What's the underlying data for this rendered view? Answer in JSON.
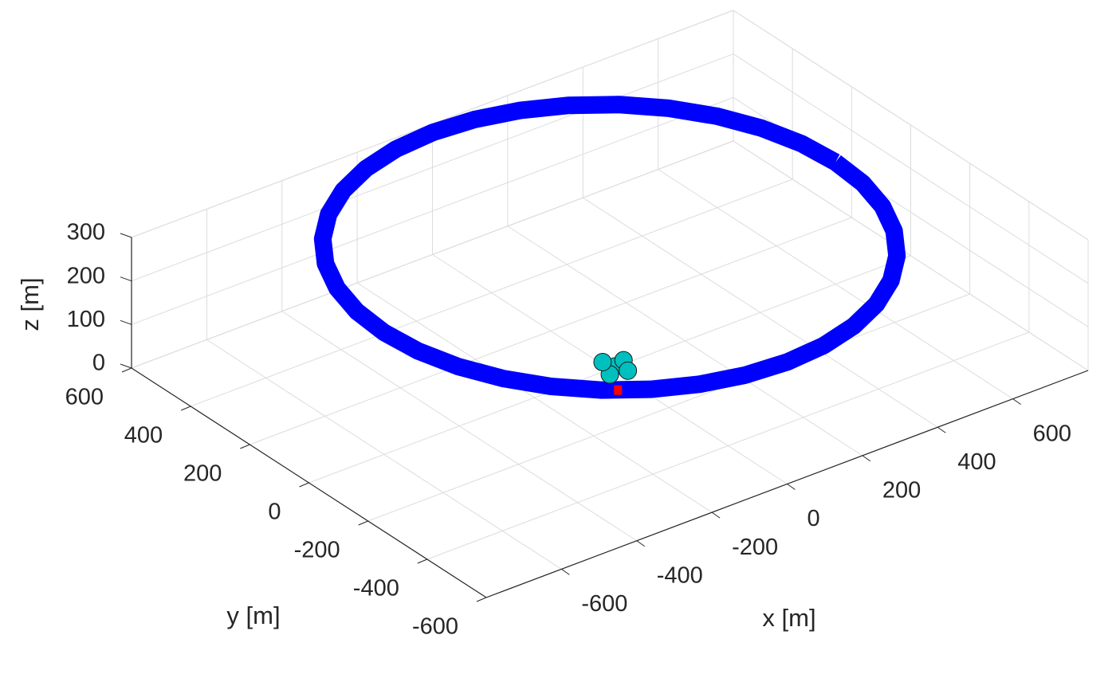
{
  "chart_data": {
    "type": "line",
    "xlabel": "x [m]",
    "ylabel": "y [m]",
    "zlabel": "z [m]",
    "xlim": [
      -800,
      800
    ],
    "ylim": [
      -600,
      600
    ],
    "zlim": [
      0,
      300
    ],
    "xticks": [
      -600,
      -400,
      -200,
      0,
      200,
      400,
      600
    ],
    "yticks": [
      -600,
      -400,
      -200,
      0,
      200,
      400,
      600
    ],
    "zticks": [
      0,
      100,
      200,
      300
    ],
    "grid": true,
    "series": [
      {
        "type": "line",
        "color": "#0000ff",
        "x": [
          600,
          591,
          564,
          520,
          460,
          386,
          300,
          205,
          104,
          0,
          -104,
          -205,
          -300,
          -386,
          -460,
          -520,
          -564,
          -591,
          -600,
          -591,
          -564,
          -520,
          -460,
          -386,
          -300,
          -205,
          -104,
          0,
          104,
          205,
          300,
          386,
          460,
          520,
          564,
          591,
          600
        ],
        "y": [
          0,
          104,
          205,
          300,
          386,
          460,
          520,
          564,
          591,
          600,
          591,
          564,
          520,
          460,
          386,
          300,
          205,
          104,
          0,
          -104,
          -205,
          -300,
          -386,
          -460,
          -520,
          -564,
          -591,
          -600,
          -591,
          -564,
          -520,
          -460,
          -386,
          -300,
          -205,
          -104,
          0
        ],
        "z": [
          280,
          280,
          280,
          280,
          280,
          280,
          280,
          280,
          280,
          280,
          280,
          280,
          280,
          280,
          280,
          280,
          280,
          280,
          280,
          280,
          280,
          280,
          280,
          280,
          280,
          280,
          280,
          280,
          280,
          280,
          280,
          280,
          280,
          280,
          280,
          280,
          280
        ]
      },
      {
        "type": "scatter",
        "marker": "circle",
        "color": "#00bfbf",
        "x": [
          -300,
          -330,
          -270,
          -310,
          -290
        ],
        "y": [
          -400,
          -420,
          -390,
          -370,
          -430
        ],
        "z": [
          280,
          280,
          280,
          280,
          280
        ]
      },
      {
        "type": "scatter",
        "marker": "square",
        "color": "#ff0000",
        "x": [
          -357
        ],
        "y": [
          -482
        ],
        "z": [
          280
        ]
      }
    ]
  }
}
